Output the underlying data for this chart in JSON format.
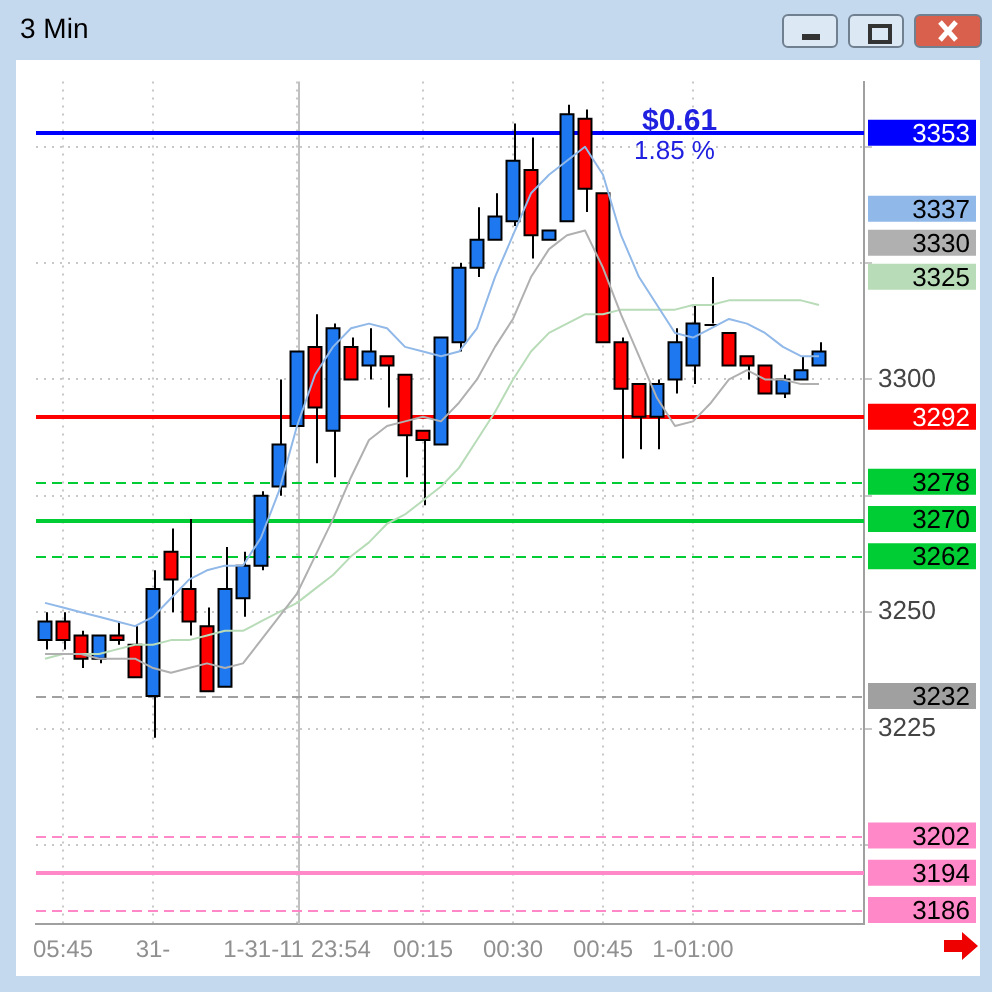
{
  "chart_data": {
    "type": "candlestick",
    "title": "3 Min",
    "categories": [
      null,
      "05:45",
      null,
      null,
      null,
      null,
      "31-",
      null,
      null,
      null,
      null,
      null,
      null,
      null,
      "1-31-11 23:54",
      null,
      null,
      null,
      null,
      null,
      null,
      "00:15",
      null,
      null,
      null,
      null,
      "00:30",
      null,
      null,
      null,
      null,
      "00:45",
      null,
      null,
      null,
      null,
      "1-01:00",
      null,
      null,
      null,
      null,
      null,
      null,
      null,
      null,
      null
    ],
    "ohlc": [
      [
        3244,
        3250,
        3242,
        3248
      ],
      [
        3248,
        3250,
        3242,
        3244
      ],
      [
        3245,
        3246,
        3238,
        3240
      ],
      [
        3240,
        3245,
        3239,
        3245
      ],
      [
        3245,
        3248,
        3243,
        3244
      ],
      [
        3243,
        3247,
        3236,
        3236
      ],
      [
        3232,
        3259,
        3223,
        3255
      ],
      [
        3263,
        3268,
        3250,
        3257
      ],
      [
        3255,
        3270,
        3245,
        3248
      ],
      [
        3247,
        3251,
        3233,
        3233
      ],
      [
        3234,
        3264,
        3234,
        3255
      ],
      [
        3253,
        3263,
        3249,
        3260
      ],
      [
        3260,
        3276,
        3259,
        3275
      ],
      [
        3277,
        3300,
        3275,
        3286
      ],
      [
        3290,
        3306,
        3290,
        3306
      ],
      [
        3307,
        3314,
        3282,
        3294
      ],
      [
        3289,
        3312,
        3279,
        3311
      ],
      [
        3307,
        3309,
        3300,
        3300
      ],
      [
        3303,
        3311,
        3300,
        3306
      ],
      [
        3305,
        3305,
        3294,
        3303
      ],
      [
        3301,
        3301,
        3279,
        3288
      ],
      [
        3289,
        3289,
        3273,
        3287
      ],
      [
        3286,
        3309,
        3286,
        3309
      ],
      [
        3308,
        3325,
        3306,
        3324
      ],
      [
        3324,
        3337,
        3322,
        3330
      ],
      [
        3330,
        3340,
        3330,
        3335
      ],
      [
        3334,
        3355,
        3333,
        3347
      ],
      [
        3345,
        3352,
        3326,
        3331
      ],
      [
        3330,
        3332,
        3330,
        3332
      ],
      [
        3334,
        3359,
        3334,
        3357
      ],
      [
        3356,
        3358,
        3336,
        3341
      ],
      [
        3340,
        3340,
        3308,
        3308
      ],
      [
        3308,
        3309,
        3283,
        3298
      ],
      [
        3299,
        3299,
        3285,
        3292
      ],
      [
        3292,
        3300,
        3285,
        3299
      ],
      [
        3300,
        3311,
        3297,
        3308
      ],
      [
        3303,
        3316,
        3299,
        3312
      ],
      [
        3312,
        3322,
        3312,
        3312
      ],
      [
        3310,
        3310,
        3303,
        3303
      ],
      [
        3305,
        3305,
        3300,
        3303
      ],
      [
        3303,
        3303,
        3297,
        3297
      ],
      [
        3297,
        3301,
        3296,
        3300
      ],
      [
        3300,
        3305,
        3300,
        3302
      ],
      [
        3303,
        3308,
        3303,
        3306
      ],
      null,
      null
    ],
    "colors": [
      "#1e78f0",
      "#ff0000",
      "#ff0000",
      "#1e78f0",
      "#ff0000",
      "#ff0000",
      "#1e78f0",
      "#ff0000",
      "#ff0000",
      "#ff0000",
      "#1e78f0",
      "#1e78f0",
      "#1e78f0",
      "#1e78f0",
      "#1e78f0",
      "#ff0000",
      "#1e78f0",
      "#ff0000",
      "#1e78f0",
      "#ff0000",
      "#ff0000",
      "#ff0000",
      "#1e78f0",
      "#1e78f0",
      "#1e78f0",
      "#1e78f0",
      "#1e78f0",
      "#ff0000",
      "#1e78f0",
      "#1e78f0",
      "#ff0000",
      "#ff0000",
      "#ff0000",
      "#ff0000",
      "#1e78f0",
      "#1e78f0",
      "#1e78f0",
      "#000000",
      "#ff0000",
      "#ff0000",
      "#ff0000",
      "#1e78f0",
      "#1e78f0",
      "#1e78f0",
      null,
      null
    ],
    "series": [
      {
        "type": "line",
        "color": "#90b8e8",
        "values": [
          3252,
          3251,
          3250,
          3249,
          3248,
          3247,
          3249,
          3253,
          3257,
          3259,
          3260,
          3260,
          3266,
          3276,
          3290,
          3301,
          3307,
          3311,
          3312,
          3311,
          3307,
          3306,
          3305,
          3306,
          3311,
          3322,
          3331,
          3340,
          3344,
          3347,
          3350,
          3344,
          3331,
          3322,
          3316,
          3310,
          3309,
          3311,
          3313,
          3312,
          3310,
          3307,
          3305,
          3305,
          null,
          null
        ]
      },
      {
        "type": "line",
        "color": "#b0b0b0",
        "values": [
          3241,
          3241,
          3241,
          3240,
          3240,
          3240,
          3238,
          3237,
          3238,
          3239,
          3238,
          3239,
          3244,
          3249,
          3254,
          3262,
          3270,
          3279,
          3287,
          3290,
          3291,
          3292,
          3291,
          3295,
          3300,
          3307,
          3313,
          3322,
          3328,
          3331,
          3332,
          3324,
          3314,
          3305,
          3296,
          3290,
          3291,
          3295,
          3300,
          3302,
          3300,
          3300,
          3299,
          3299,
          null,
          null
        ]
      },
      {
        "type": "line",
        "color": "#b8dcb8",
        "values": [
          3240,
          3241,
          3241,
          3241,
          3242,
          3243,
          3243,
          3244,
          3244,
          3245,
          3246,
          3246,
          3248,
          3250,
          3252,
          3255,
          3258,
          3262,
          3265,
          3269,
          3271,
          3274,
          3277,
          3281,
          3287,
          3293,
          3300,
          3306,
          3310,
          3312,
          3314,
          3314,
          3315,
          3315,
          3315,
          3315,
          3316,
          3316,
          3317,
          3317,
          3317,
          3317,
          3317,
          3316,
          null,
          null
        ]
      }
    ],
    "ylim": [
      3183,
      3364
    ],
    "yticks": [
      {
        "value": 3200,
        "label": null
      },
      3225,
      3250,
      {
        "value": 3275,
        "label": null
      },
      3300,
      {
        "value": 3325,
        "label": null
      },
      {
        "value": 3350,
        "label": null
      }
    ],
    "grid": true,
    "marker": "none",
    "line_style": "solid",
    "ref_lines": [
      {
        "axis": "x",
        "value": "1-31-11 23:54",
        "color": "#c0c0c0"
      },
      {
        "axis": "y",
        "value": 3353,
        "label": "3353",
        "color": "#0000ff"
      },
      {
        "axis": "y",
        "value": 3292,
        "label": "3292",
        "color": "#ff0000"
      },
      {
        "axis": "y",
        "value": 3278,
        "label": "3278",
        "color": "#00cc33",
        "line_style": "dashed"
      },
      {
        "axis": "y",
        "value": 3270,
        "label": "3270",
        "color": "#00cc33"
      },
      {
        "axis": "y",
        "value": 3262,
        "label": "3262",
        "color": "#00cc33",
        "line_style": "dashed"
      },
      {
        "axis": "y",
        "value": 3232,
        "label": "3232",
        "color": "#a0a0a0",
        "line_style": "dashed"
      },
      {
        "axis": "y",
        "value": 3202,
        "label": "3202",
        "color": "#ff88c8",
        "line_style": "dashed"
      },
      {
        "axis": "y",
        "value": 3194,
        "label": "3194",
        "color": "#ff88c8"
      },
      {
        "axis": "y",
        "value": 3186,
        "label": "3186",
        "color": "#ff88c8",
        "line_style": "dashed"
      }
    ],
    "annotations": [
      "3337",
      "3330",
      "3325",
      "$0.61",
      "1.85 %"
    ]
  }
}
